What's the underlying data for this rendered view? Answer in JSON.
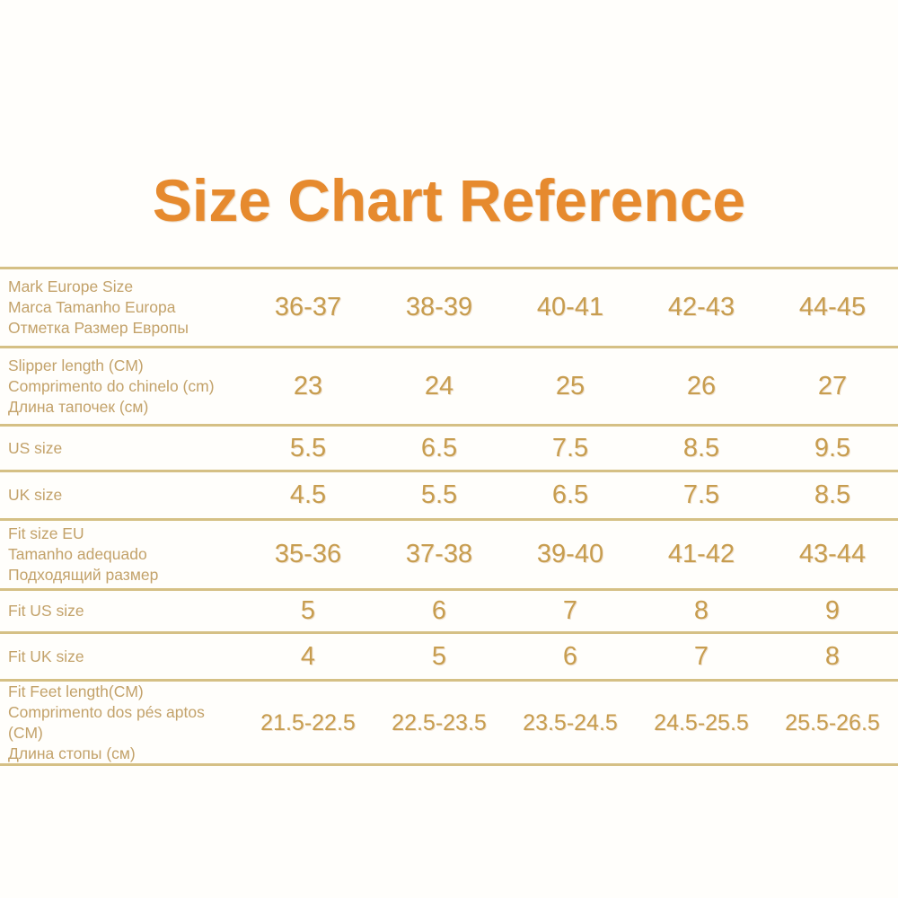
{
  "title": "Size Chart Reference",
  "colors": {
    "background": "#fffefb",
    "title": "#e68a2e",
    "label": "#c3a26a",
    "value": "#c79d4f",
    "line": "#d5c085"
  },
  "chart_data": {
    "type": "table",
    "title": "Size Chart Reference",
    "columns": [
      "size_system",
      "size_1",
      "size_2",
      "size_3",
      "size_4",
      "size_5"
    ],
    "rows": [
      {
        "labels": [
          "Mark Europe Size",
          "Marca Tamanho Europa",
          "Отметка Размер Европы"
        ],
        "values": [
          "36-37",
          "38-39",
          "40-41",
          "42-43",
          "44-45"
        ]
      },
      {
        "labels": [
          "Slipper length (CM)",
          "Comprimento do chinelo (cm)",
          "Длина тапочек (см)"
        ],
        "values": [
          "23",
          "24",
          "25",
          "26",
          "27"
        ]
      },
      {
        "labels": [
          "US size"
        ],
        "values": [
          "5.5",
          "6.5",
          "7.5",
          "8.5",
          "9.5"
        ]
      },
      {
        "labels": [
          "UK size"
        ],
        "values": [
          "4.5",
          "5.5",
          "6.5",
          "7.5",
          "8.5"
        ]
      },
      {
        "labels": [
          "Fit size EU",
          "Tamanho adequado",
          "Подходящий размер"
        ],
        "values": [
          "35-36",
          "37-38",
          "39-40",
          "41-42",
          "43-44"
        ]
      },
      {
        "labels": [
          "Fit US size"
        ],
        "values": [
          "5",
          "6",
          "7",
          "8",
          "9"
        ]
      },
      {
        "labels": [
          "Fit UK size"
        ],
        "values": [
          "4",
          "5",
          "6",
          "7",
          "8"
        ]
      },
      {
        "labels": [
          "Fit Feet length(CM)",
          "Comprimento dos pés aptos (CM)",
          "Длина стопы (см)"
        ],
        "values": [
          "21.5-22.5",
          "22.5-23.5",
          "23.5-24.5",
          "24.5-25.5",
          "25.5-26.5"
        ]
      }
    ]
  }
}
